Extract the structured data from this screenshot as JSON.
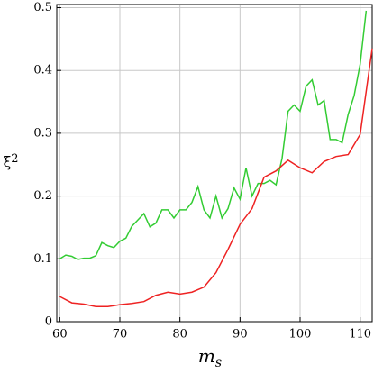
{
  "chart_data": {
    "type": "line",
    "xlabel": "m",
    "xlabel_subscript": "s",
    "ylabel": "ξ",
    "ylabel_subscript": "2",
    "xlim": [
      59.5,
      112
    ],
    "ylim": [
      0,
      0.505
    ],
    "xticks": [
      60,
      70,
      80,
      90,
      100,
      110
    ],
    "yticks": [
      0,
      0.1,
      0.2,
      0.3,
      0.4,
      0.5
    ],
    "grid": true,
    "series": [
      {
        "color": "#33cc33",
        "x": [
          60,
          61,
          62,
          63,
          64,
          65,
          66,
          67,
          68,
          69,
          70,
          71,
          72,
          73,
          74,
          75,
          76,
          77,
          78,
          79,
          80,
          81,
          82,
          83,
          84,
          85,
          86,
          87,
          88,
          89,
          90,
          91,
          92,
          93,
          94,
          95,
          96,
          97,
          98,
          99,
          100,
          101,
          102,
          103,
          104,
          105,
          106,
          107,
          108,
          109,
          110,
          111
        ],
        "values": [
          0.1,
          0.106,
          0.104,
          0.099,
          0.101,
          0.101,
          0.105,
          0.126,
          0.121,
          0.118,
          0.128,
          0.133,
          0.152,
          0.162,
          0.172,
          0.151,
          0.157,
          0.178,
          0.178,
          0.165,
          0.178,
          0.178,
          0.19,
          0.215,
          0.178,
          0.165,
          0.2,
          0.165,
          0.18,
          0.213,
          0.195,
          0.245,
          0.2,
          0.22,
          0.22,
          0.225,
          0.218,
          0.26,
          0.335,
          0.345,
          0.335,
          0.375,
          0.385,
          0.345,
          0.352,
          0.29,
          0.29,
          0.285,
          0.33,
          0.36,
          0.41,
          0.495
        ]
      },
      {
        "color": "#ee2222",
        "x": [
          60,
          62,
          64,
          66,
          68,
          70,
          72,
          74,
          76,
          78,
          80,
          82,
          84,
          86,
          88,
          90,
          92,
          94,
          96,
          98,
          100,
          102,
          104,
          106,
          108,
          110,
          112
        ],
        "values": [
          0.04,
          0.03,
          0.028,
          0.024,
          0.024,
          0.027,
          0.029,
          0.032,
          0.042,
          0.047,
          0.044,
          0.047,
          0.055,
          0.078,
          0.115,
          0.155,
          0.18,
          0.23,
          0.24,
          0.257,
          0.245,
          0.237,
          0.255,
          0.263,
          0.266,
          0.298,
          0.435
        ]
      }
    ]
  }
}
